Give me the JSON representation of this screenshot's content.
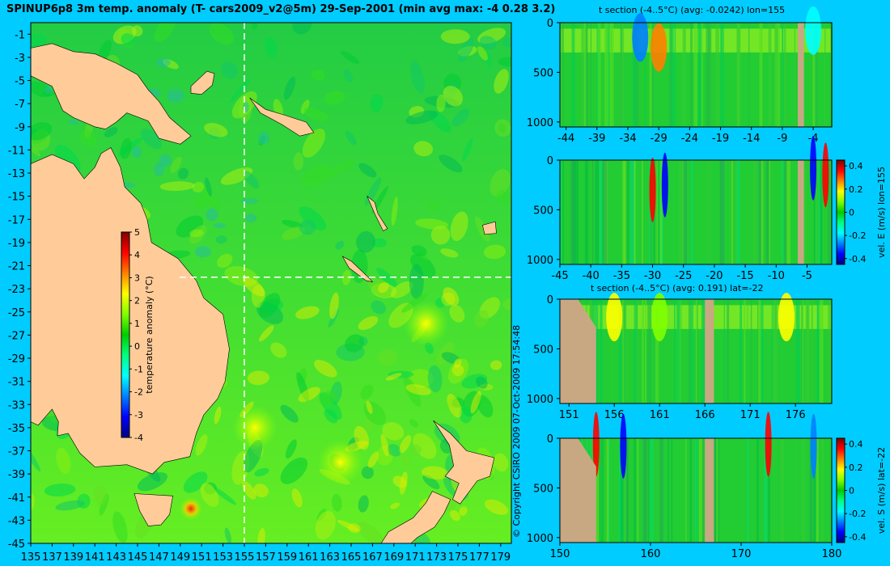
{
  "header": {
    "title": "SPINUP6p8 3m temp. anomaly (T- cars2009_v2@5m) 29-Sep-2001 (min avg max: -4 0.28 3.2)",
    "copyright": "© Copyright CSIRO 2009   07-Oct-2009 17:54:48"
  },
  "colors": {
    "background": "#00ccff",
    "land_map": "#ffcc99",
    "land_section": "#c8a882",
    "ocean_mid": "#33cc33",
    "colormap": [
      "#000080",
      "#0000ff",
      "#0080ff",
      "#00ffff",
      "#00ff80",
      "#00cc00",
      "#80ff00",
      "#ffff00",
      "#ff8000",
      "#ff0000",
      "#800000"
    ]
  },
  "chart_data": [
    {
      "id": "map",
      "type": "heatmap",
      "title": "SPINUP6p8 3m temp. anomaly (T- cars2009_v2@5m) 29-Sep-2001 (min avg max: -4 0.28 3.2)",
      "x_ticks": [
        "135",
        "137",
        "139",
        "141",
        "143",
        "145",
        "147",
        "149",
        "151",
        "153",
        "155",
        "157",
        "159",
        "161",
        "163",
        "165",
        "167",
        "169",
        "171",
        "173",
        "175",
        "177",
        "179"
      ],
      "y_ticks": [
        "-1",
        "-3",
        "-5",
        "-7",
        "-9",
        "-11",
        "-13",
        "-15",
        "-17",
        "-19",
        "-21",
        "-23",
        "-25",
        "-27",
        "-29",
        "-31",
        "-33",
        "-35",
        "-37",
        "-39",
        "-41",
        "-43",
        "-45"
      ],
      "xlim": [
        135,
        180
      ],
      "ylim": [
        -45,
        0
      ],
      "section_lines": {
        "lon": 155,
        "lat": -22
      },
      "colorbar": {
        "label": "temperature anomaly (°C)",
        "ticks": [
          "5",
          "4",
          "3",
          "2",
          "1",
          "0",
          "-1",
          "-2",
          "-3",
          "-4"
        ],
        "range": [
          -4,
          5
        ]
      },
      "hotspots": [
        {
          "lon": 150,
          "lat": -42,
          "value": 3
        },
        {
          "lon": 164,
          "lat": -38,
          "value": 1.5
        },
        {
          "lon": 156,
          "lat": -35,
          "value": 1.5
        },
        {
          "lon": 172,
          "lat": -26,
          "value": 1.5
        }
      ]
    },
    {
      "id": "t-section-lon155",
      "type": "heatmap",
      "title": "t section (-4..5°C) (avg: -0.0242) lon=155",
      "x_ticks": [
        "-44",
        "-39",
        "-34",
        "-29",
        "-24",
        "-19",
        "-14",
        "-9",
        "-4"
      ],
      "y_ticks": [
        "0",
        "500",
        "1000"
      ],
      "xlim": [
        -45,
        -1
      ],
      "ylim": [
        1050,
        0
      ],
      "land_bands": [
        [
          -6.5,
          -5.5
        ]
      ],
      "hotspots": [
        {
          "x": -29,
          "depth": 250,
          "value": 3.5
        },
        {
          "x": -32,
          "depth": 150,
          "value": -2
        },
        {
          "x": -4,
          "depth": 80,
          "value": -1
        }
      ]
    },
    {
      "id": "vel-e-lon155",
      "type": "heatmap",
      "title": "",
      "colorbar_label": "vel. E (m/s) lon=155",
      "x_ticks": [
        "-45",
        "-40",
        "-35",
        "-30",
        "-25",
        "-20",
        "-15",
        "-10",
        "-5"
      ],
      "y_ticks": [
        "0",
        "500",
        "1000"
      ],
      "xlim": [
        -45,
        -1
      ],
      "ylim": [
        1050,
        0
      ],
      "land_bands": [
        [
          -6.5,
          -5.5
        ]
      ],
      "colorbar": {
        "ticks": [
          "0.4",
          "0.2",
          "0",
          "-0.2",
          "-0.4"
        ],
        "range": [
          -0.45,
          0.45
        ]
      },
      "hotspots": [
        {
          "x": -30,
          "depth": 300,
          "value": 0.4
        },
        {
          "x": -28,
          "depth": 250,
          "value": -0.4
        },
        {
          "x": -2,
          "depth": 150,
          "value": 0.4
        },
        {
          "x": -4,
          "depth": 80,
          "value": -0.4
        }
      ]
    },
    {
      "id": "t-section-lat-22",
      "type": "heatmap",
      "title": "t section (-4..5°C) (avg: 0.191) lat=-22",
      "x_ticks": [
        "151",
        "156",
        "161",
        "166",
        "171",
        "176"
      ],
      "y_ticks": [
        "0",
        "500",
        "1000"
      ],
      "xlim": [
        150,
        180
      ],
      "ylim": [
        1050,
        0
      ],
      "land_bands": [
        [
          150,
          154
        ],
        [
          166,
          167
        ]
      ],
      "hotspots": [
        {
          "x": 156,
          "depth": 180,
          "value": 2
        },
        {
          "x": 175,
          "depth": 180,
          "value": 2
        },
        {
          "x": 161,
          "depth": 180,
          "value": 1.5
        }
      ]
    },
    {
      "id": "vel-s-lat-22",
      "type": "heatmap",
      "title": "",
      "colorbar_label": "vel. S (m/s) lat=-22",
      "x_ticks": [
        "150",
        "160",
        "170",
        "180"
      ],
      "y_ticks": [
        "0",
        "500",
        "1000"
      ],
      "xlim": [
        150,
        180
      ],
      "ylim": [
        1050,
        0
      ],
      "land_bands": [
        [
          150,
          154
        ],
        [
          166,
          167
        ]
      ],
      "colorbar": {
        "ticks": [
          "0.4",
          "0.2",
          "0",
          "-0.2",
          "-0.4"
        ],
        "range": [
          -0.45,
          0.45
        ]
      },
      "hotspots": [
        {
          "x": 157,
          "depth": 80,
          "value": -0.4
        },
        {
          "x": 154,
          "depth": 60,
          "value": 0.4
        },
        {
          "x": 173,
          "depth": 60,
          "value": 0.4
        },
        {
          "x": 178,
          "depth": 80,
          "value": -0.3
        }
      ]
    }
  ]
}
